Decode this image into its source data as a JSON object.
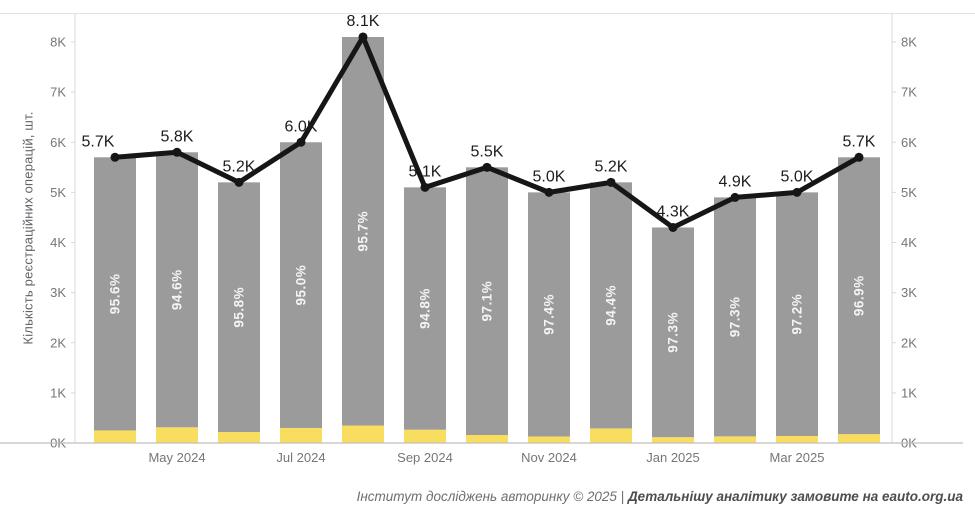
{
  "chart_data": {
    "type": "bar",
    "subtype": "stacked-bar-with-line-overlay",
    "title": "",
    "ylabel": "Кількість реєстраційних операцій, шт.",
    "xlabel": "",
    "ylim": [
      0,
      8.6
    ],
    "grid": false,
    "legend": "none",
    "y_tick_labels": [
      "0K",
      "1K",
      "2K",
      "3K",
      "4K",
      "5K",
      "6K",
      "7K",
      "8K"
    ],
    "y_axis_sides": [
      "left",
      "right"
    ],
    "categories": [
      "Apr 2024",
      "May 2024",
      "Jun 2024",
      "Jul 2024",
      "Aug 2024",
      "Sep 2024",
      "Oct 2024",
      "Nov 2024",
      "Dec 2024",
      "Jan 2025",
      "Feb 2025",
      "Mar 2025",
      "Apr 2025"
    ],
    "x_tick_shown_indices": [
      1,
      3,
      5,
      7,
      9,
      11
    ],
    "x_tick_shown_labels": [
      "May 2024",
      "Jul 2024",
      "Sep 2024",
      "Nov 2024",
      "Jan 2025",
      "Mar 2025"
    ],
    "series": [
      {
        "name": "total-registrations-line",
        "type": "line",
        "unit": "K",
        "values": [
          5.7,
          5.8,
          5.2,
          6.0,
          8.1,
          5.1,
          5.5,
          5.0,
          5.2,
          4.3,
          4.9,
          5.0,
          5.7
        ],
        "point_labels": [
          "5.7K",
          "5.8K",
          "5.2K",
          "6.0K",
          "8.1K",
          "5.1K",
          "5.5K",
          "5.0K",
          "5.2K",
          "4.3K",
          "4.9K",
          "5.0K",
          "5.7K"
        ]
      },
      {
        "name": "gray-segment-share",
        "type": "stacked-bar-upper",
        "unit": "%",
        "values": [
          95.6,
          94.6,
          95.8,
          95.0,
          95.7,
          94.8,
          97.1,
          97.4,
          94.4,
          97.3,
          97.3,
          97.2,
          96.9
        ],
        "segment_labels": [
          "95.6%",
          "94.6%",
          "95.8%",
          "95.0%",
          "95.7%",
          "94.8%",
          "97.1%",
          "97.4%",
          "94.4%",
          "97.3%",
          "97.3%",
          "97.2%",
          "96.9%"
        ]
      },
      {
        "name": "yellow-segment-share",
        "type": "stacked-bar-lower",
        "unit": "%",
        "note": "remainder of total: 100 - gray share, no labels rendered"
      }
    ],
    "colors": {
      "bar_gray": "#9b9b9b",
      "bar_yellow": "#f9dd5f",
      "line_black": "#161616",
      "bar_pct_text": "#f4f4f4",
      "value_label_text": "#1c1c1c",
      "tick_text": "#767676",
      "axis_line": "#d8d8d8",
      "baseline": "#bfbfbf"
    }
  },
  "footer": {
    "credit_regular": "Інститут досліджень авторинку © 2025 | ",
    "credit_bold": "Детальнішу аналітику замовите на eauto.org.ua"
  }
}
